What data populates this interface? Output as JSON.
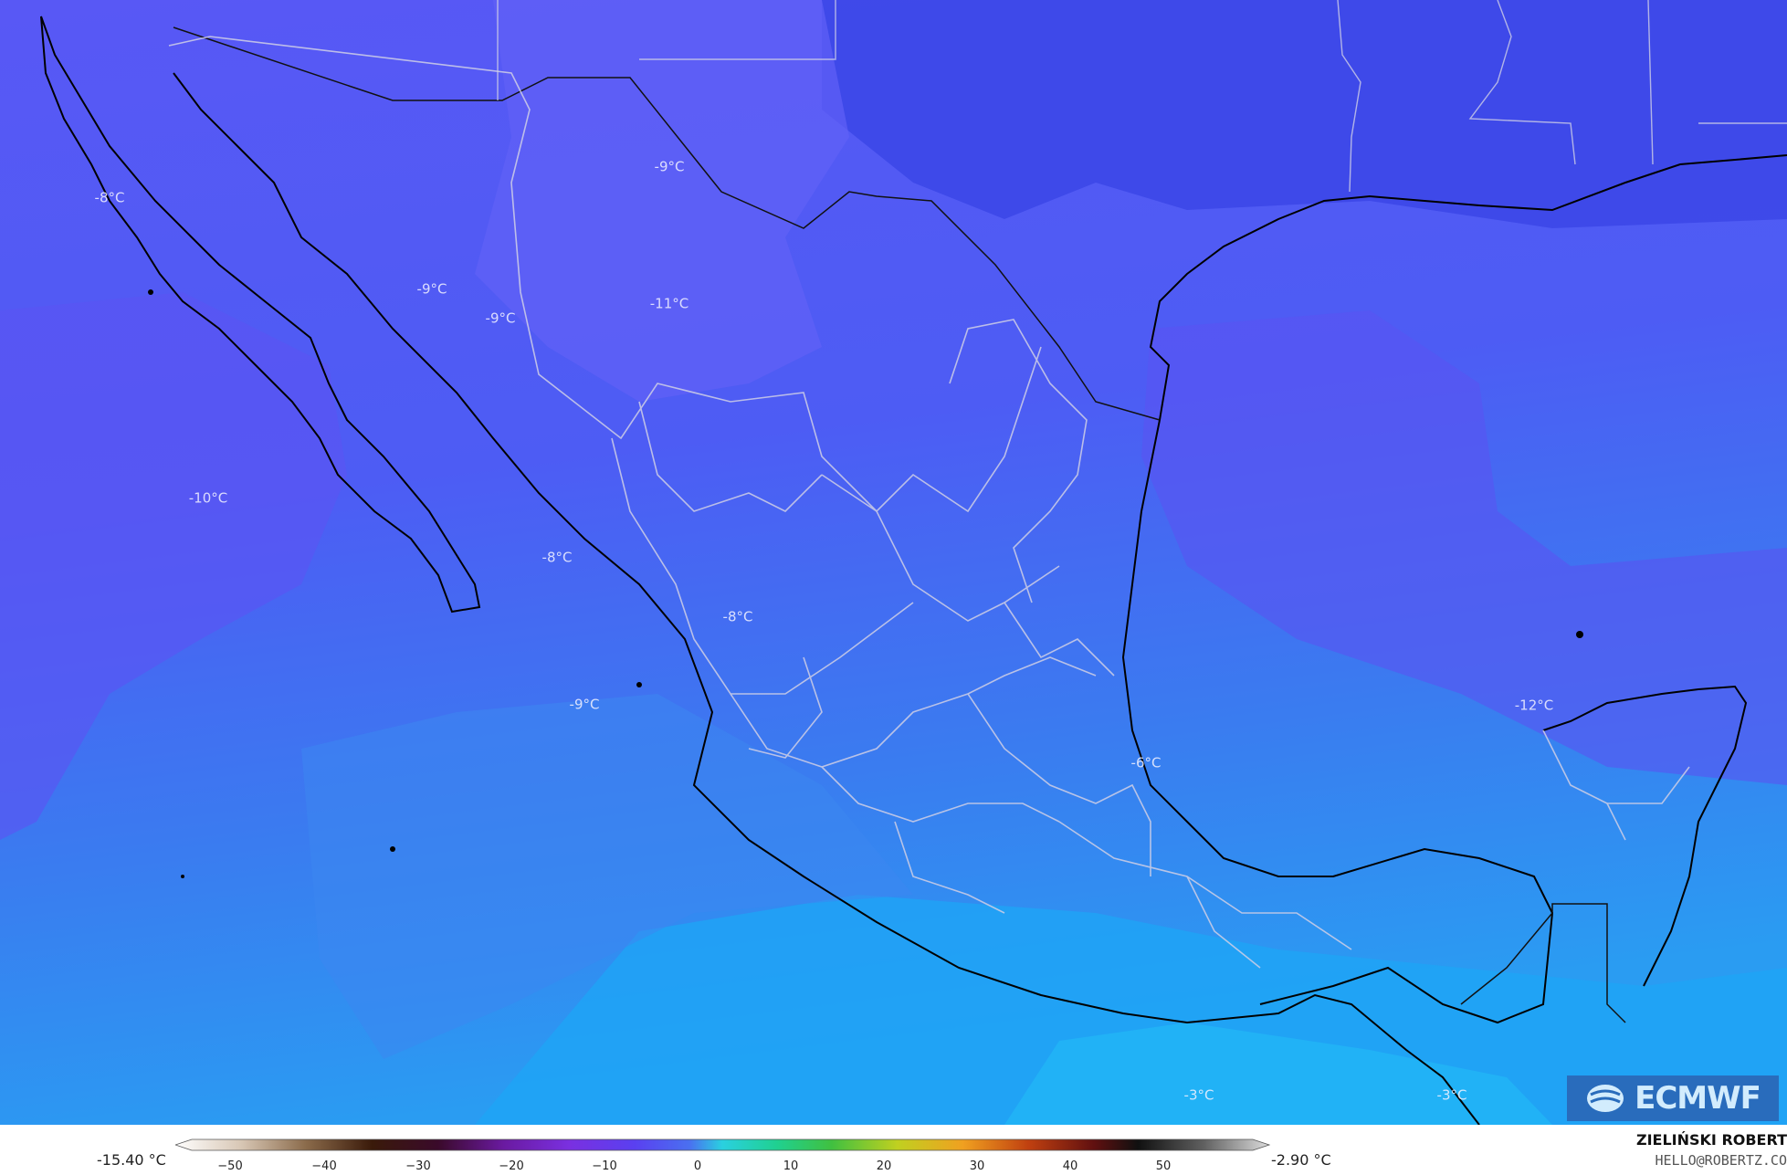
{
  "map": {
    "background_color": "#4a52f0",
    "labels": [
      {
        "text": "-8°C"
      },
      {
        "text": "-9°C"
      },
      {
        "text": "-9°C"
      },
      {
        "text": "-9°C"
      },
      {
        "text": "-11°C"
      },
      {
        "text": "-10°C"
      },
      {
        "text": "-8°C"
      },
      {
        "text": "-8°C"
      },
      {
        "text": "-9°C"
      },
      {
        "text": "-6°C"
      },
      {
        "text": "-12°C"
      },
      {
        "text": "-3°C"
      },
      {
        "text": "-3°C"
      }
    ]
  },
  "logo": {
    "text": "ECMWF",
    "icon": "ecmwf-logo-icon"
  },
  "legend": {
    "min_value": "-15.40 °C",
    "max_value": "-2.90 °C",
    "ticks": [
      "−50",
      "−40",
      "−30",
      "−20",
      "−10",
      "0",
      "10",
      "20",
      "30",
      "40",
      "50"
    ]
  },
  "credit": {
    "name": "ZIELIŃSKI ROBERT",
    "email": "HELLO@ROBERTZ.CO"
  }
}
